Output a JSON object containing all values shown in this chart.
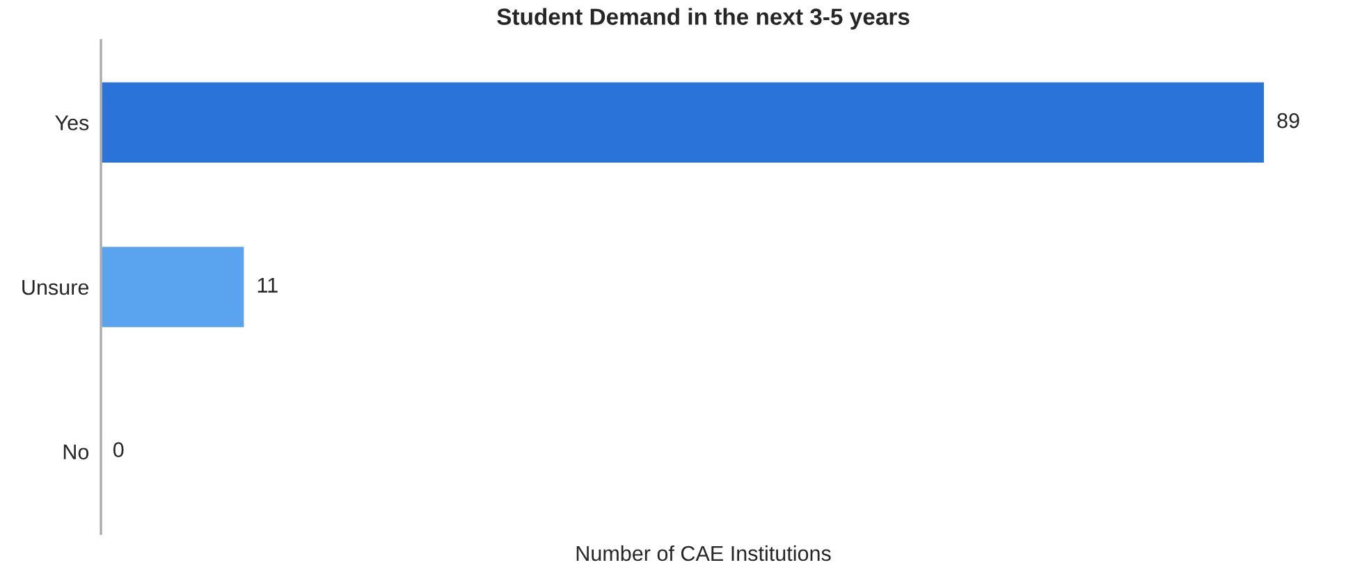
{
  "chart_data": {
    "type": "bar",
    "orientation": "horizontal",
    "title": "Student Demand in the next 3-5 years",
    "xlabel": "Number of CAE Institutions",
    "categories": [
      "Yes",
      "Unsure",
      "No"
    ],
    "values": [
      89,
      11,
      0
    ],
    "colors": [
      "#2a73d9",
      "#5aa3ef",
      null
    ],
    "data_labels": true,
    "tick_labels": "y",
    "grid": false,
    "legend": false
  }
}
